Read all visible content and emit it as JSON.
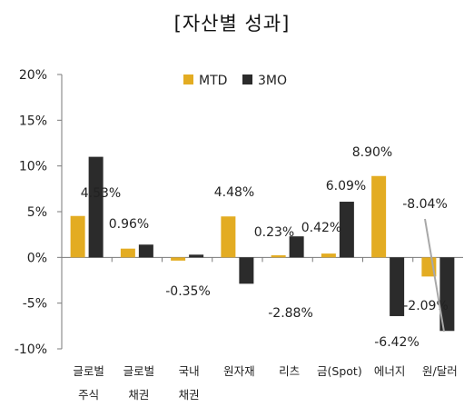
{
  "title": "[자산별 성과]",
  "colors": {
    "MTD": "#e3ac22",
    "3MO": "#2b2b2b",
    "axis": "#7a7a7a",
    "connector": "#a8a8a8"
  },
  "chart_data": {
    "type": "bar",
    "title": "[자산별 성과]",
    "categories": [
      [
        "글로벌",
        "주식"
      ],
      [
        "글로벌",
        "채권"
      ],
      [
        "국내",
        "채권"
      ],
      [
        "원자재"
      ],
      [
        "리츠"
      ],
      [
        "금(Spot)"
      ],
      [
        "에너지"
      ],
      [
        "원/달러"
      ]
    ],
    "series": [
      {
        "name": "MTD",
        "values": [
          4.53,
          0.96,
          -0.35,
          4.48,
          0.23,
          0.42,
          8.9,
          -2.09
        ]
      },
      {
        "name": "3MO",
        "values": [
          11.0,
          1.4,
          0.3,
          -2.88,
          2.3,
          6.09,
          -6.42,
          -8.04
        ]
      }
    ],
    "data_labels": [
      "4.53%",
      "0.96%",
      "-0.35%",
      "4.48%",
      "-2.88%",
      "0.23%",
      "0.42%",
      "6.09%",
      "8.90%",
      "-6.42%",
      "-8.04%",
      "-2.09%"
    ],
    "y_ticks": [
      "20%",
      "15%",
      "10%",
      "5%",
      "0%",
      "-5%",
      "-10%"
    ],
    "ylim": [
      -10,
      20
    ],
    "legend_position": "top-center",
    "grid": false
  }
}
